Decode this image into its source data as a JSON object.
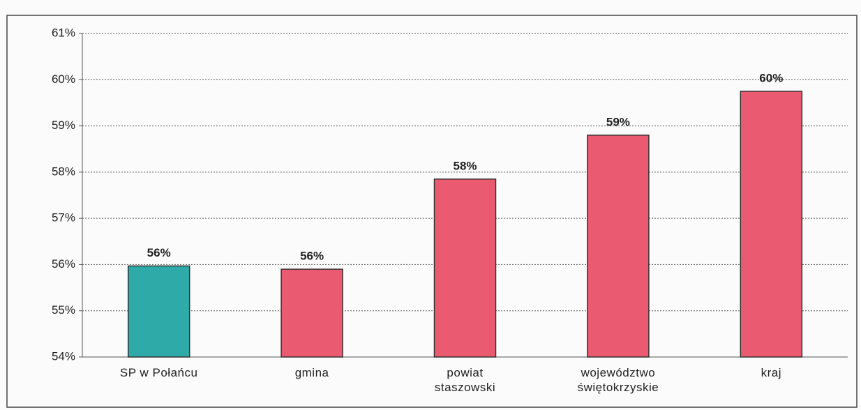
{
  "chart_data": {
    "type": "bar",
    "categories": [
      "SP w Połańcu",
      "gmina",
      "powiat\nstaszowski",
      "województwo\nświętokrzyskie",
      "kraj"
    ],
    "values": [
      55.97,
      55.9,
      57.85,
      58.8,
      59.75
    ],
    "value_labels": [
      "56%",
      "56%",
      "58%",
      "59%",
      "60%"
    ],
    "colors": [
      "#2eaaa8",
      "#ea5a70",
      "#ea5a70",
      "#ea5a70",
      "#ea5a70"
    ],
    "ylim": [
      54,
      61
    ],
    "yticks": [
      {
        "value": 54,
        "label": "54%"
      },
      {
        "value": 55,
        "label": "55%"
      },
      {
        "value": 56,
        "label": "56%"
      },
      {
        "value": 57,
        "label": "57%"
      },
      {
        "value": 58,
        "label": "58%"
      },
      {
        "value": 59,
        "label": "59%"
      },
      {
        "value": 60,
        "label": "60%"
      },
      {
        "value": 61,
        "label": "61%"
      }
    ],
    "grid": true
  }
}
